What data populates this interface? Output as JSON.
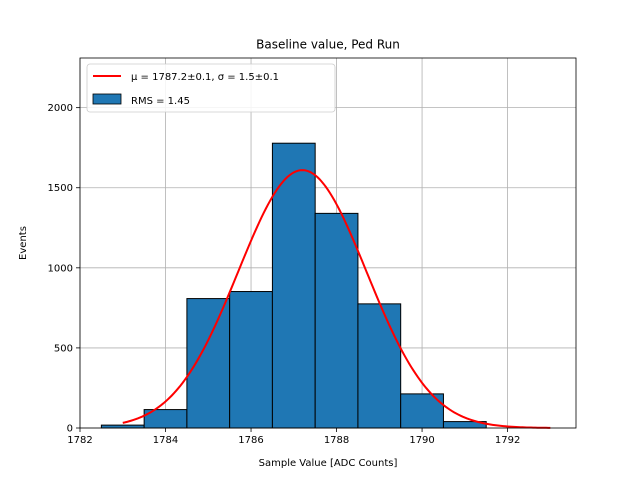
{
  "chart_data": {
    "type": "bar",
    "title": "Baseline value, Ped Run",
    "xlabel": "Sample Value [ADC Counts]",
    "ylabel": "Events",
    "xlim": [
      1782,
      1793.6
    ],
    "ylim": [
      0,
      2310
    ],
    "xticks": [
      1782,
      1784,
      1786,
      1788,
      1790,
      1792
    ],
    "yticks": [
      0,
      500,
      1000,
      1500,
      2000
    ],
    "grid": true,
    "legend_position": "top-left",
    "bins": [
      {
        "x0": 1782.5,
        "x1": 1783.5,
        "value": 18
      },
      {
        "x0": 1783.5,
        "x1": 1784.5,
        "value": 115
      },
      {
        "x0": 1784.5,
        "x1": 1785.5,
        "value": 808
      },
      {
        "x0": 1785.5,
        "x1": 1786.5,
        "value": 852
      },
      {
        "x0": 1786.5,
        "x1": 1787.5,
        "value": 1778
      },
      {
        "x0": 1787.5,
        "x1": 1788.5,
        "value": 1340
      },
      {
        "x0": 1788.5,
        "x1": 1789.5,
        "value": 775
      },
      {
        "x0": 1789.5,
        "x1": 1790.5,
        "value": 213
      },
      {
        "x0": 1790.5,
        "x1": 1791.5,
        "value": 40
      }
    ],
    "fit": {
      "type": "gaussian",
      "mu": 1787.2,
      "sigma": 1.5,
      "amplitude": 1610,
      "x_range": [
        1783,
        1793
      ]
    },
    "legend": [
      {
        "label": "μ = 1787.2±0.1, σ = 1.5±0.1",
        "kind": "line",
        "color": "#ff0000"
      },
      {
        "label": "RMS = 1.45",
        "kind": "patch",
        "color": "#1f77b4"
      }
    ],
    "colors": {
      "bar_fill": "#1f77b4",
      "bar_edge": "#000000",
      "fit_line": "#ff0000",
      "grid": "#b0b0b0"
    }
  }
}
